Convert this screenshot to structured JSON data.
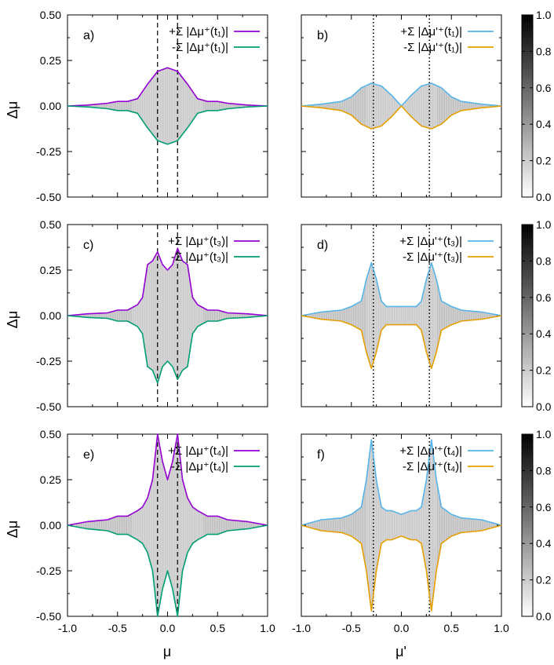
{
  "colors": {
    "purple": "#9400d3",
    "green": "#009e73",
    "blue": "#56b4e9",
    "orange": "#e69f00",
    "cloud": "#9a9a9a"
  },
  "axes": {
    "ylabel": "Δμ",
    "xlabel_left": "μ",
    "xlabel_right": "μ'"
  },
  "chart_data": [
    {
      "type": "area",
      "panel": "a)",
      "xlim": [
        -1.0,
        1.0
      ],
      "ylim": [
        -0.5,
        0.5
      ],
      "xticks": [
        "-1.0",
        "-0.5",
        "0.0",
        "0.5",
        "1.0"
      ],
      "yticks": [
        "-0.50",
        "-0.25",
        "0.00",
        "0.25",
        "0.50"
      ],
      "vlines": {
        "style": "dashed",
        "x": [
          -0.1,
          0.1
        ]
      },
      "series": [
        {
          "name": "+Σ |Δμ⁺(t₁)|",
          "color": "purple",
          "x": [
            -1.0,
            -0.8,
            -0.6,
            -0.5,
            -0.4,
            -0.3,
            -0.2,
            -0.1,
            0.0,
            0.1,
            0.2,
            0.3,
            0.4,
            0.5,
            0.6,
            0.8,
            1.0
          ],
          "y": [
            0.0,
            0.005,
            0.015,
            0.025,
            0.025,
            0.04,
            0.12,
            0.19,
            0.21,
            0.19,
            0.12,
            0.04,
            0.025,
            0.025,
            0.015,
            0.005,
            0.0
          ]
        },
        {
          "name": "-Σ |Δμ⁺(t₁)|",
          "color": "green",
          "x": [
            -1.0,
            -0.8,
            -0.6,
            -0.5,
            -0.4,
            -0.3,
            -0.2,
            -0.1,
            0.0,
            0.1,
            0.2,
            0.3,
            0.4,
            0.5,
            0.6,
            0.8,
            1.0
          ],
          "y": [
            0.0,
            -0.005,
            -0.015,
            -0.025,
            -0.025,
            -0.04,
            -0.12,
            -0.19,
            -0.21,
            -0.19,
            -0.12,
            -0.04,
            -0.025,
            -0.025,
            -0.015,
            -0.005,
            0.0
          ]
        }
      ]
    },
    {
      "type": "area",
      "panel": "b)",
      "xlim": [
        -1.0,
        1.0
      ],
      "ylim": [
        -0.5,
        0.5
      ],
      "xticks": [
        "-1.0",
        "-0.5",
        "0.0",
        "0.5",
        "1.0"
      ],
      "yticks": [
        "-0.50",
        "-0.25",
        "0.00",
        "0.25",
        "0.50"
      ],
      "vlines": {
        "style": "dotted",
        "x": [
          -0.28,
          0.28
        ]
      },
      "series": [
        {
          "name": "+Σ |Δμ'⁺(t₁)|",
          "color": "blue",
          "x": [
            -1.0,
            -0.8,
            -0.6,
            -0.5,
            -0.4,
            -0.3,
            -0.2,
            -0.1,
            0.0,
            0.1,
            0.2,
            0.3,
            0.4,
            0.5,
            0.6,
            0.8,
            1.0
          ],
          "y": [
            0.0,
            0.01,
            0.025,
            0.05,
            0.1,
            0.125,
            0.11,
            0.06,
            0.0,
            0.06,
            0.11,
            0.125,
            0.1,
            0.05,
            0.025,
            0.01,
            0.0
          ]
        },
        {
          "name": "-Σ |Δμ'⁺(t₁)|",
          "color": "orange",
          "x": [
            -1.0,
            -0.8,
            -0.6,
            -0.5,
            -0.4,
            -0.3,
            -0.2,
            -0.1,
            0.0,
            0.1,
            0.2,
            0.3,
            0.4,
            0.5,
            0.6,
            0.8,
            1.0
          ],
          "y": [
            0.0,
            -0.01,
            -0.025,
            -0.05,
            -0.1,
            -0.125,
            -0.11,
            -0.06,
            0.0,
            -0.06,
            -0.11,
            -0.125,
            -0.1,
            -0.05,
            -0.025,
            -0.01,
            0.0
          ]
        }
      ]
    },
    {
      "type": "area",
      "panel": "c)",
      "xlim": [
        -1.0,
        1.0
      ],
      "ylim": [
        -0.5,
        0.5
      ],
      "xticks": [
        "-1.0",
        "-0.5",
        "0.0",
        "0.5",
        "1.0"
      ],
      "yticks": [
        "-0.50",
        "-0.25",
        "0.00",
        "0.25",
        "0.50"
      ],
      "vlines": {
        "style": "dashed",
        "x": [
          -0.1,
          0.1
        ]
      },
      "series": [
        {
          "name": "+Σ |Δμ⁺(t₃)|",
          "color": "purple",
          "x": [
            -1.0,
            -0.8,
            -0.6,
            -0.5,
            -0.4,
            -0.3,
            -0.25,
            -0.2,
            -0.15,
            -0.1,
            -0.05,
            0.0,
            0.05,
            0.1,
            0.15,
            0.2,
            0.25,
            0.3,
            0.4,
            0.5,
            0.6,
            0.8,
            1.0
          ],
          "y": [
            0.0,
            0.01,
            0.015,
            0.03,
            0.03,
            0.06,
            0.1,
            0.28,
            0.3,
            0.35,
            0.28,
            0.25,
            0.28,
            0.37,
            0.3,
            0.28,
            0.1,
            0.06,
            0.03,
            0.03,
            0.015,
            0.01,
            0.0
          ]
        },
        {
          "name": "-Σ |Δμ⁺(t₃)|",
          "color": "green",
          "x": [
            -1.0,
            -0.8,
            -0.6,
            -0.5,
            -0.4,
            -0.3,
            -0.25,
            -0.2,
            -0.15,
            -0.1,
            -0.05,
            0.0,
            0.05,
            0.1,
            0.15,
            0.2,
            0.25,
            0.3,
            0.4,
            0.5,
            0.6,
            0.8,
            1.0
          ],
          "y": [
            0.0,
            -0.01,
            -0.015,
            -0.03,
            -0.03,
            -0.06,
            -0.1,
            -0.28,
            -0.3,
            -0.37,
            -0.28,
            -0.25,
            -0.28,
            -0.35,
            -0.3,
            -0.28,
            -0.1,
            -0.06,
            -0.03,
            -0.03,
            -0.015,
            -0.01,
            0.0
          ]
        }
      ]
    },
    {
      "type": "area",
      "panel": "d)",
      "xlim": [
        -1.0,
        1.0
      ],
      "ylim": [
        -0.5,
        0.5
      ],
      "xticks": [
        "-1.0",
        "-0.5",
        "0.0",
        "0.5",
        "1.0"
      ],
      "yticks": [
        "-0.50",
        "-0.25",
        "0.00",
        "0.25",
        "0.50"
      ],
      "vlines": {
        "style": "dotted",
        "x": [
          -0.28,
          0.28
        ]
      },
      "series": [
        {
          "name": "+Σ |Δμ'⁺(t₃)|",
          "color": "blue",
          "x": [
            -1.0,
            -0.8,
            -0.6,
            -0.5,
            -0.4,
            -0.35,
            -0.3,
            -0.25,
            -0.2,
            -0.15,
            -0.1,
            0.0,
            0.1,
            0.15,
            0.2,
            0.25,
            0.3,
            0.35,
            0.4,
            0.5,
            0.6,
            0.8,
            1.0
          ],
          "y": [
            0.0,
            0.02,
            0.03,
            0.05,
            0.08,
            0.2,
            0.29,
            0.2,
            0.08,
            0.05,
            0.05,
            0.05,
            0.05,
            0.05,
            0.08,
            0.2,
            0.29,
            0.2,
            0.08,
            0.05,
            0.03,
            0.02,
            0.0
          ]
        },
        {
          "name": "-Σ |Δμ'⁺(t₃)|",
          "color": "orange",
          "x": [
            -1.0,
            -0.8,
            -0.6,
            -0.5,
            -0.4,
            -0.35,
            -0.3,
            -0.25,
            -0.2,
            -0.15,
            -0.1,
            0.0,
            0.1,
            0.15,
            0.2,
            0.25,
            0.3,
            0.35,
            0.4,
            0.5,
            0.6,
            0.8,
            1.0
          ],
          "y": [
            0.0,
            -0.02,
            -0.03,
            -0.05,
            -0.08,
            -0.2,
            -0.29,
            -0.2,
            -0.08,
            -0.05,
            -0.05,
            -0.05,
            -0.05,
            -0.05,
            -0.08,
            -0.2,
            -0.29,
            -0.2,
            -0.08,
            -0.05,
            -0.03,
            -0.02,
            0.0
          ]
        }
      ]
    },
    {
      "type": "area",
      "panel": "e)",
      "xlim": [
        -1.0,
        1.0
      ],
      "ylim": [
        -0.5,
        0.5
      ],
      "xticks": [
        "-1.0",
        "-0.5",
        "0.0",
        "0.5",
        "1.0"
      ],
      "yticks": [
        "-0.50",
        "-0.25",
        "0.00",
        "0.25",
        "0.50"
      ],
      "vlines": {
        "style": "dashed",
        "x": [
          -0.1,
          0.1
        ]
      },
      "series": [
        {
          "name": "+Σ |Δμ⁺(t₄)|",
          "color": "purple",
          "x": [
            -1.0,
            -0.8,
            -0.6,
            -0.5,
            -0.4,
            -0.3,
            -0.25,
            -0.2,
            -0.15,
            -0.1,
            -0.05,
            0.0,
            0.05,
            0.1,
            0.15,
            0.2,
            0.25,
            0.3,
            0.4,
            0.5,
            0.6,
            0.8,
            1.0
          ],
          "y": [
            0.0,
            0.02,
            0.03,
            0.05,
            0.05,
            0.08,
            0.1,
            0.15,
            0.25,
            0.5,
            0.35,
            0.25,
            0.35,
            0.5,
            0.25,
            0.15,
            0.1,
            0.08,
            0.05,
            0.05,
            0.03,
            0.02,
            0.0
          ]
        },
        {
          "name": "-Σ |Δμ⁺(t₄)|",
          "color": "green",
          "x": [
            -1.0,
            -0.8,
            -0.6,
            -0.5,
            -0.4,
            -0.3,
            -0.25,
            -0.2,
            -0.15,
            -0.1,
            -0.05,
            0.0,
            0.05,
            0.1,
            0.15,
            0.2,
            0.25,
            0.3,
            0.4,
            0.5,
            0.6,
            0.8,
            1.0
          ],
          "y": [
            0.0,
            -0.02,
            -0.03,
            -0.05,
            -0.05,
            -0.08,
            -0.1,
            -0.15,
            -0.25,
            -0.5,
            -0.35,
            -0.25,
            -0.35,
            -0.5,
            -0.25,
            -0.15,
            -0.1,
            -0.08,
            -0.05,
            -0.05,
            -0.03,
            -0.02,
            0.0
          ]
        }
      ]
    },
    {
      "type": "area",
      "panel": "f)",
      "xlim": [
        -1.0,
        1.0
      ],
      "ylim": [
        -0.5,
        0.5
      ],
      "xticks": [
        "-1.0",
        "-0.5",
        "0.0",
        "0.5",
        "1.0"
      ],
      "yticks": [
        "-0.50",
        "-0.25",
        "0.00",
        "0.25",
        "0.50"
      ],
      "vlines": {
        "style": "dotted",
        "x": [
          -0.28,
          0.28
        ]
      },
      "series": [
        {
          "name": "+Σ |Δμ'⁺(t₄)|",
          "color": "blue",
          "x": [
            -1.0,
            -0.8,
            -0.6,
            -0.5,
            -0.4,
            -0.35,
            -0.3,
            -0.25,
            -0.2,
            -0.15,
            -0.1,
            0.0,
            0.1,
            0.15,
            0.2,
            0.25,
            0.3,
            0.35,
            0.4,
            0.5,
            0.6,
            0.8,
            1.0
          ],
          "y": [
            0.0,
            0.03,
            0.04,
            0.06,
            0.1,
            0.25,
            0.47,
            0.25,
            0.1,
            0.08,
            0.08,
            0.06,
            0.08,
            0.08,
            0.1,
            0.25,
            0.47,
            0.25,
            0.1,
            0.06,
            0.04,
            0.03,
            0.0
          ]
        },
        {
          "name": "-Σ |Δμ'⁺(t₄)|",
          "color": "orange",
          "x": [
            -1.0,
            -0.8,
            -0.6,
            -0.5,
            -0.4,
            -0.35,
            -0.3,
            -0.25,
            -0.2,
            -0.15,
            -0.1,
            0.0,
            0.1,
            0.15,
            0.2,
            0.25,
            0.3,
            0.35,
            0.4,
            0.5,
            0.6,
            0.8,
            1.0
          ],
          "y": [
            0.0,
            -0.03,
            -0.04,
            -0.06,
            -0.1,
            -0.25,
            -0.47,
            -0.25,
            -0.1,
            -0.08,
            -0.08,
            -0.06,
            -0.08,
            -0.08,
            -0.1,
            -0.25,
            -0.47,
            -0.25,
            -0.1,
            -0.06,
            -0.04,
            -0.03,
            0.0
          ]
        }
      ]
    }
  ],
  "colorbar": {
    "range": [
      0.0,
      1.0
    ],
    "ticks": [
      "0.0",
      "0.2",
      "0.4",
      "0.6",
      "0.8",
      "1.0"
    ],
    "colors": [
      "#ffffff",
      "#000000"
    ]
  }
}
